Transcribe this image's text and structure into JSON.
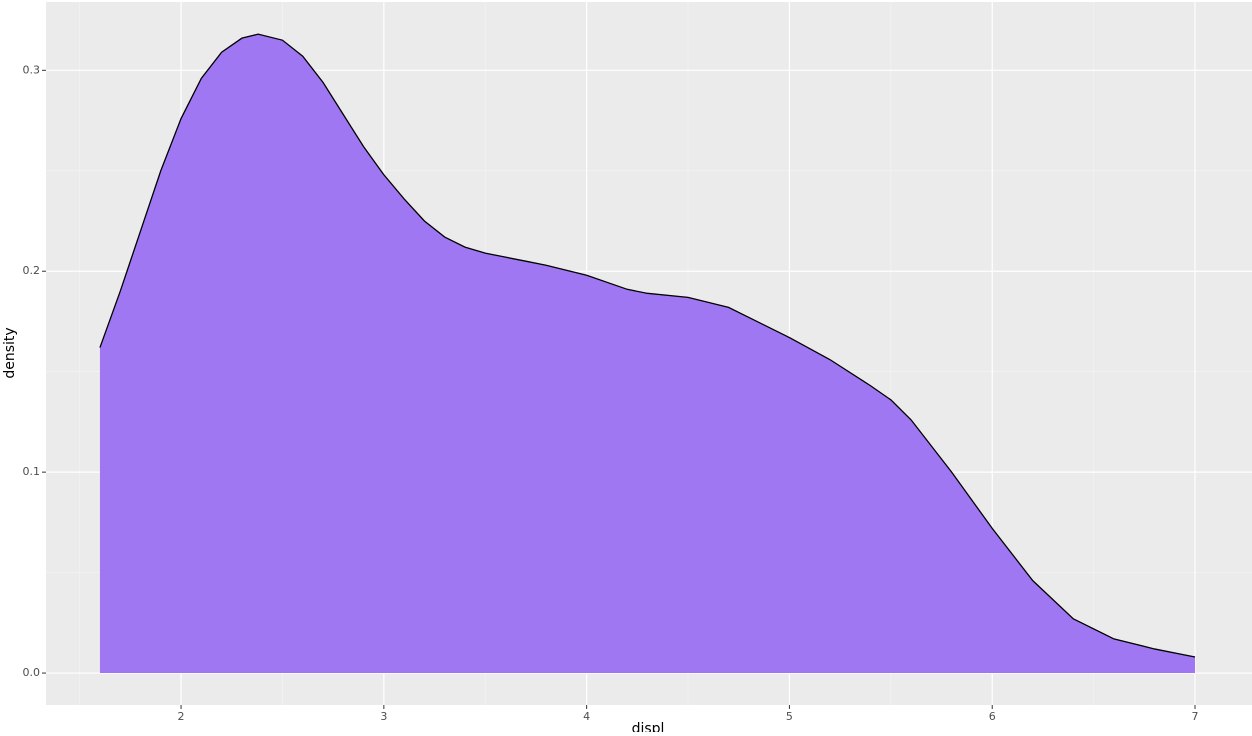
{
  "chart_data": {
    "type": "area",
    "x_label": "displ",
    "y_label": "density",
    "x": [
      1.6,
      1.7,
      1.8,
      1.9,
      2.0,
      2.1,
      2.2,
      2.3,
      2.38,
      2.5,
      2.6,
      2.7,
      2.8,
      2.9,
      3.0,
      3.1,
      3.2,
      3.3,
      3.4,
      3.5,
      3.6,
      3.7,
      3.8,
      4.0,
      4.2,
      4.3,
      4.5,
      4.7,
      4.8,
      5.0,
      5.2,
      5.4,
      5.5,
      5.6,
      5.8,
      6.0,
      6.2,
      6.4,
      6.6,
      6.8,
      7.0
    ],
    "values": [
      0.162,
      0.19,
      0.22,
      0.25,
      0.276,
      0.296,
      0.309,
      0.316,
      0.318,
      0.315,
      0.307,
      0.294,
      0.278,
      0.262,
      0.248,
      0.236,
      0.225,
      0.217,
      0.212,
      0.209,
      0.207,
      0.205,
      0.203,
      0.198,
      0.191,
      0.189,
      0.187,
      0.182,
      0.177,
      0.167,
      0.156,
      0.143,
      0.136,
      0.126,
      0.1,
      0.072,
      0.046,
      0.027,
      0.017,
      0.012,
      0.008
    ],
    "color": "#a077f3",
    "line_color": "#000000",
    "xlim": [
      1.334,
      7.281
    ],
    "ylim": [
      -0.0159,
      0.334
    ],
    "xticks": [
      2,
      3,
      4,
      5,
      6,
      7
    ],
    "yticks": [
      {
        "value": 0,
        "label": "0.0"
      },
      0.1,
      0.2,
      0.3
    ],
    "xminor": [
      1.5,
      2.5,
      3.5,
      4.5,
      5.5,
      6.5
    ],
    "yminor": [
      0.05,
      0.15,
      0.25
    ],
    "grid": true
  }
}
